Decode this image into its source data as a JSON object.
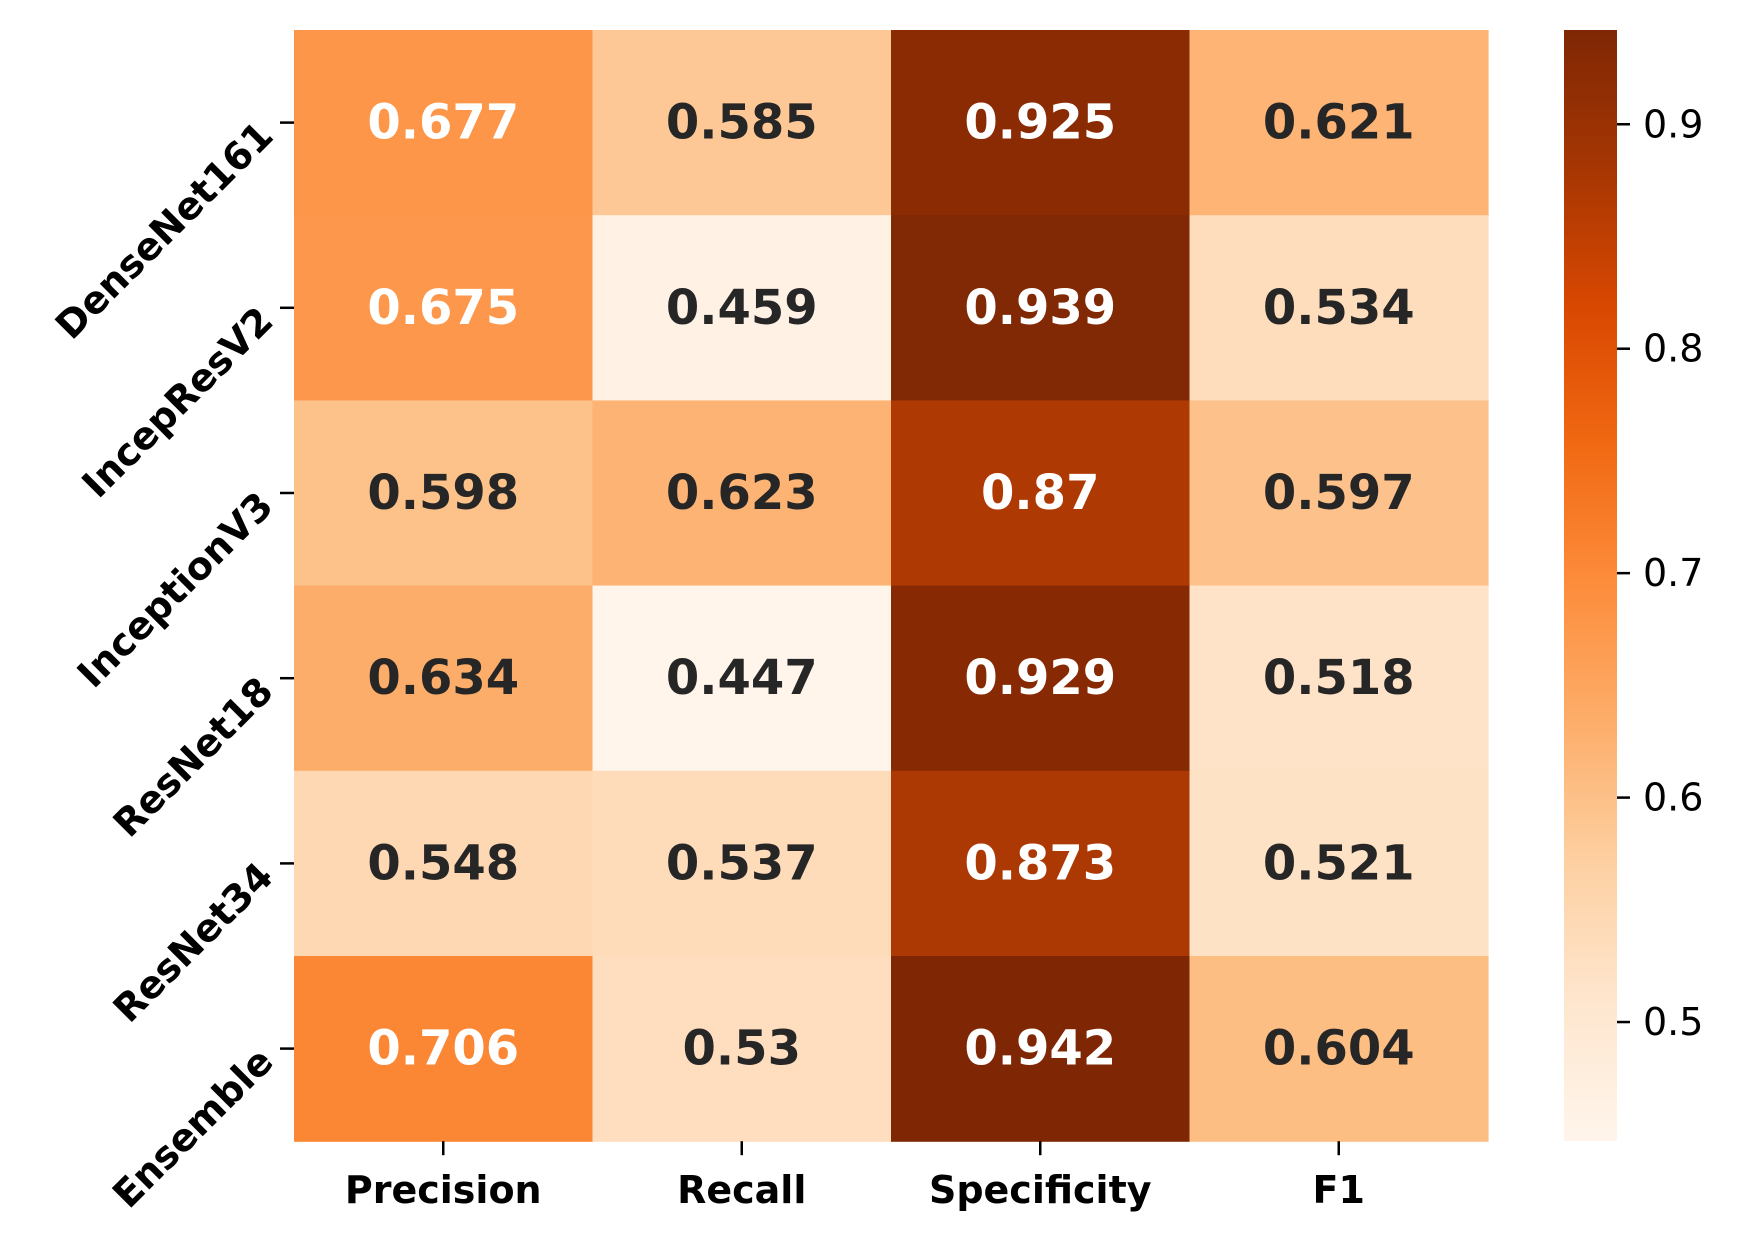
{
  "chart_data": {
    "type": "heatmap",
    "title": "",
    "xlabel": "",
    "ylabel": "",
    "colormap": "Oranges",
    "columns": [
      "Precision",
      "Recall",
      "Specificity",
      "F1"
    ],
    "rows": [
      "DenseNet161",
      "IncepResV2",
      "InceptionV3",
      "ResNet18",
      "ResNet34",
      "Ensemble"
    ],
    "values": [
      [
        0.677,
        0.585,
        0.925,
        0.621
      ],
      [
        0.675,
        0.459,
        0.939,
        0.534
      ],
      [
        0.598,
        0.623,
        0.87,
        0.597
      ],
      [
        0.634,
        0.447,
        0.929,
        0.518
      ],
      [
        0.548,
        0.537,
        0.873,
        0.521
      ],
      [
        0.706,
        0.53,
        0.942,
        0.604
      ]
    ],
    "labels": [
      [
        "0.677",
        "0.585",
        "0.925",
        "0.621"
      ],
      [
        "0.675",
        "0.459",
        "0.939",
        "0.534"
      ],
      [
        "0.598",
        "0.623",
        "0.87",
        "0.597"
      ],
      [
        "0.634",
        "0.447",
        "0.929",
        "0.518"
      ],
      [
        "0.548",
        "0.537",
        "0.873",
        "0.521"
      ],
      [
        "0.706",
        "0.53",
        "0.942",
        "0.604"
      ]
    ],
    "colorbar": {
      "range": [
        0.447,
        0.942
      ],
      "ticks": [
        0.5,
        0.6,
        0.7,
        0.8,
        0.9
      ],
      "tick_labels": [
        "0.5",
        "0.6",
        "0.7",
        "0.8",
        "0.9"
      ]
    },
    "label_colors": {
      "dark_text": "#262626",
      "light_text": "#ffffff"
    },
    "grid": false,
    "legend": "colorbar-right"
  }
}
